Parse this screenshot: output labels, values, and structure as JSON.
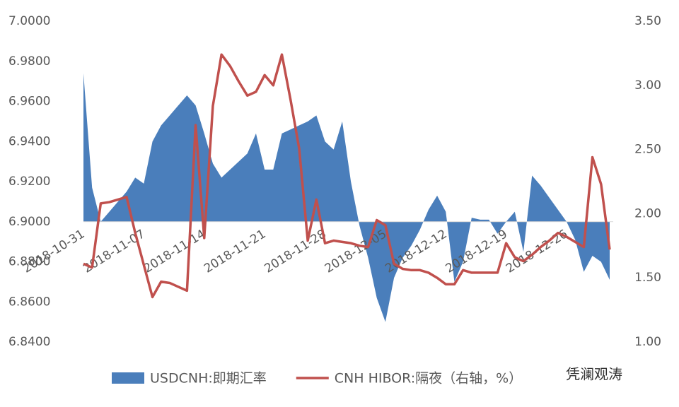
{
  "chart_data": {
    "type": "area-line",
    "x": [
      "2018-10-31",
      "2018-11-01",
      "2018-11-02",
      "2018-11-03",
      "2018-11-04",
      "2018-11-05",
      "2018-11-06",
      "2018-11-07",
      "2018-11-08",
      "2018-11-09",
      "2018-11-10",
      "2018-11-11",
      "2018-11-12",
      "2018-11-13",
      "2018-11-14",
      "2018-11-15",
      "2018-11-16",
      "2018-11-17",
      "2018-11-18",
      "2018-11-19",
      "2018-11-20",
      "2018-11-21",
      "2018-11-22",
      "2018-11-23",
      "2018-11-24",
      "2018-11-25",
      "2018-11-26",
      "2018-11-27",
      "2018-11-28",
      "2018-11-29",
      "2018-11-30",
      "2018-12-01",
      "2018-12-02",
      "2018-12-03",
      "2018-12-04",
      "2018-12-05",
      "2018-12-06",
      "2018-12-07",
      "2018-12-08",
      "2018-12-09",
      "2018-12-10",
      "2018-12-11",
      "2018-12-12",
      "2018-12-13",
      "2018-12-14",
      "2018-12-15",
      "2018-12-16",
      "2018-12-17",
      "2018-12-18",
      "2018-12-19",
      "2018-12-20",
      "2018-12-21",
      "2018-12-22",
      "2018-12-23",
      "2018-12-24",
      "2018-12-25",
      "2018-12-26",
      "2018-12-27",
      "2018-12-28",
      "2018-12-29",
      "2018-12-30",
      "2018-12-31"
    ],
    "xlim": [
      "2018-10-31",
      "2018-12-31"
    ],
    "xticks": [
      "2018-10-31",
      "2018-11-07",
      "2018-11-14",
      "2018-11-21",
      "2018-11-28",
      "2018-12-05",
      "2018-12-12",
      "2018-12-19",
      "2018-12-26"
    ],
    "baseline": 6.9,
    "ylim": [
      6.84,
      7.0
    ],
    "yticks": [
      {
        "value": 7.0,
        "label": "7.0000"
      },
      {
        "value": 6.98,
        "label": "6.9800"
      },
      {
        "value": 6.96,
        "label": "6.9600"
      },
      {
        "value": 6.94,
        "label": "6.9400"
      },
      {
        "value": 6.92,
        "label": "6.9200"
      },
      {
        "value": 6.9,
        "label": "6.9000"
      },
      {
        "value": 6.88,
        "label": "6.8800"
      },
      {
        "value": 6.86,
        "label": "6.8600"
      },
      {
        "value": 6.84,
        "label": "6.8400"
      }
    ],
    "y2lim": [
      1.0,
      3.5
    ],
    "y2ticks": [
      {
        "value": 3.5,
        "label": "3.50"
      },
      {
        "value": 3.0,
        "label": "3.00"
      },
      {
        "value": 2.5,
        "label": "2.50"
      },
      {
        "value": 2.0,
        "label": "2.00"
      },
      {
        "value": 1.5,
        "label": "1.50"
      },
      {
        "value": 1.0,
        "label": "1.00"
      }
    ],
    "grid": false,
    "series": [
      {
        "name": "USDCNH:即期汇率",
        "kind": "area",
        "color": "#4a7ebb",
        "values": [
          6.974,
          6.917,
          6.9,
          6.905,
          6.91,
          6.915,
          6.922,
          6.919,
          6.94,
          6.948,
          6.953,
          6.958,
          6.963,
          6.958,
          6.944,
          6.929,
          6.922,
          6.926,
          6.93,
          6.934,
          6.944,
          6.926,
          6.926,
          6.944,
          6.946,
          6.948,
          6.95,
          6.953,
          6.94,
          6.936,
          6.95,
          6.92,
          6.898,
          6.882,
          6.862,
          6.85,
          6.872,
          6.882,
          6.888,
          6.896,
          6.906,
          6.913,
          6.905,
          6.87,
          6.88,
          6.902,
          6.901,
          6.901,
          6.894,
          6.9,
          6.905,
          6.885,
          6.923,
          6.918,
          6.912,
          6.906,
          6.9,
          6.891,
          6.875,
          6.883,
          6.88,
          6.871
        ]
      },
      {
        "name": "CNH HIBOR:隔夜（右轴，%）",
        "kind": "line",
        "axis": "y2",
        "color": "#c0504d",
        "values": [
          1.61,
          1.58,
          2.08,
          2.09,
          2.11,
          2.13,
          1.85,
          1.6,
          1.35,
          1.47,
          1.46,
          1.43,
          1.4,
          2.69,
          1.81,
          2.84,
          3.24,
          3.15,
          3.03,
          2.92,
          2.95,
          3.08,
          3.0,
          3.24,
          2.89,
          2.51,
          1.79,
          2.11,
          1.77,
          1.79,
          1.78,
          1.77,
          1.75,
          1.74,
          1.95,
          1.91,
          1.61,
          1.57,
          1.56,
          1.56,
          1.54,
          1.5,
          1.45,
          1.45,
          1.56,
          1.54,
          1.54,
          1.54,
          1.54,
          1.77,
          1.66,
          1.63,
          1.68,
          1.74,
          1.79,
          1.85,
          1.82,
          1.78,
          1.74,
          2.44,
          2.23,
          1.72
        ]
      }
    ]
  },
  "watermark": "凭澜观涛"
}
